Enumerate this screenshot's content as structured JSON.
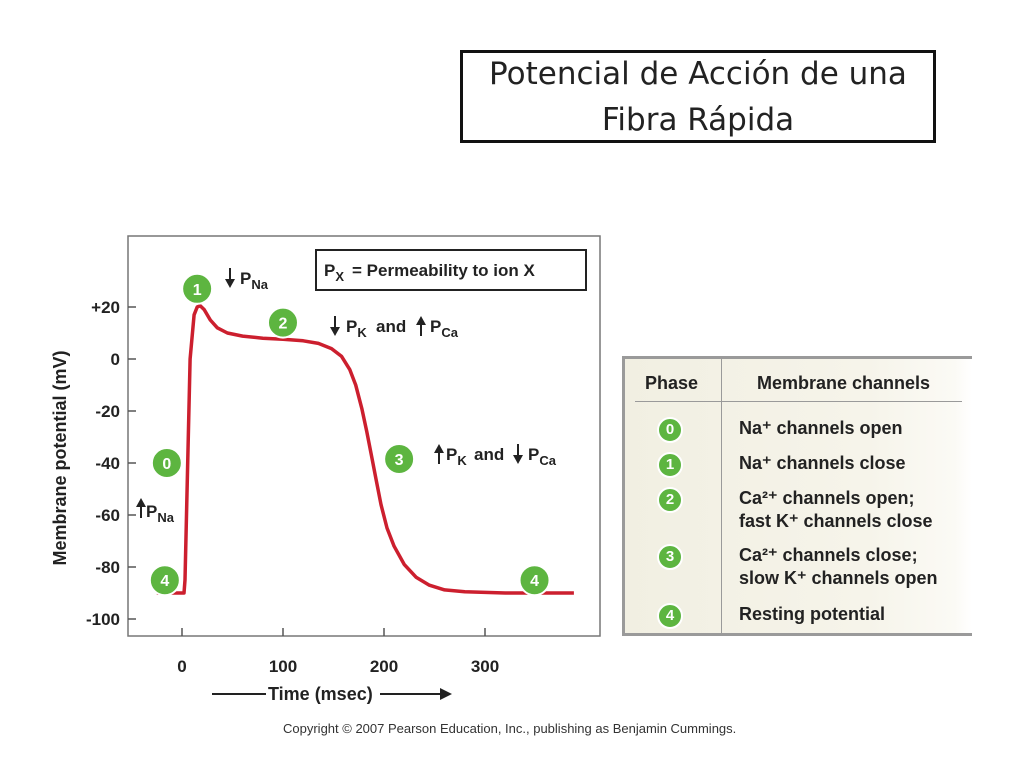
{
  "slide": {
    "title_line1": "Potencial de Acción de una",
    "title_line2": "Fibra Rápida",
    "copyright": "Copyright © 2007 Pearson Education, Inc., publishing as Benjamin Cummings."
  },
  "chart_data": {
    "type": "line",
    "xlabel": "Time (msec)",
    "ylabel": "Membrane potential (mV)",
    "xlim": [
      -30,
      410
    ],
    "ylim": [
      -105,
      45
    ],
    "x_ticks": [
      0,
      100,
      200,
      300
    ],
    "y_ticks": [
      20,
      0,
      -20,
      -40,
      -60,
      -80,
      -100
    ],
    "y_tick_labels": [
      "+20",
      "0",
      "-20",
      "-40",
      "-60",
      "-80",
      "-100"
    ],
    "line_color": "#cc1f2e",
    "series": [
      {
        "points": [
          [
            -25,
            -90
          ],
          [
            2,
            -90
          ],
          [
            3,
            -85
          ],
          [
            8,
            0
          ],
          [
            12,
            17
          ],
          [
            15,
            20
          ],
          [
            18,
            20.5
          ],
          [
            22,
            19
          ],
          [
            28,
            15
          ],
          [
            35,
            12
          ],
          [
            45,
            10
          ],
          [
            60,
            8.8
          ],
          [
            80,
            8
          ],
          [
            100,
            7.6
          ],
          [
            120,
            7
          ],
          [
            135,
            6
          ],
          [
            148,
            4
          ],
          [
            158,
            1
          ],
          [
            166,
            -4
          ],
          [
            172,
            -10
          ],
          [
            178,
            -19
          ],
          [
            183,
            -28
          ],
          [
            188,
            -38
          ],
          [
            192,
            -46
          ],
          [
            197,
            -56
          ],
          [
            203,
            -65
          ],
          [
            210,
            -72
          ],
          [
            220,
            -79
          ],
          [
            232,
            -84
          ],
          [
            245,
            -87
          ],
          [
            260,
            -88.8
          ],
          [
            280,
            -89.5
          ],
          [
            320,
            -90
          ],
          [
            360,
            -90
          ],
          [
            388,
            -90
          ]
        ]
      }
    ],
    "legend_box": {
      "p": "P",
      "x_sub": "X",
      "text": "=  Permeability to ion X"
    },
    "annotations": [
      {
        "phase": "0",
        "x": -15,
        "y": -40,
        "label_p": "P",
        "label_sub": "Na",
        "arrow": "up",
        "label_x": -40,
        "label_y": -58
      },
      {
        "phase": "1",
        "x": 15,
        "y": 27,
        "label_p": "P",
        "label_sub": "Na",
        "arrow": "down"
      },
      {
        "phase": "2",
        "x": 98,
        "y": 14,
        "text1_p": "P",
        "text1_sub": "K",
        "arrow1": "down",
        "and": "and",
        "text2_p": "P",
        "text2_sub": "Ca",
        "arrow2": "up"
      },
      {
        "phase": "3",
        "x": 213,
        "y": -40,
        "text1_p": "P",
        "text1_sub": "K",
        "arrow1": "up",
        "and": "and",
        "text2_p": "P",
        "text2_sub": "Ca",
        "arrow2": "down"
      },
      {
        "phase": "4a",
        "label": "4",
        "x": -17,
        "y": -82
      },
      {
        "phase": "4b",
        "label": "4",
        "x": 353,
        "y": -82
      }
    ]
  },
  "table": {
    "header_phase": "Phase",
    "header_channels": "Membrane channels",
    "rows": [
      {
        "phase": "0",
        "line1": "Na⁺ channels open",
        "line2": ""
      },
      {
        "phase": "1",
        "line1": "Na⁺ channels close",
        "line2": ""
      },
      {
        "phase": "2",
        "line1": "Ca²⁺ channels open;",
        "line2": "fast K⁺ channels close"
      },
      {
        "phase": "3",
        "line1": "Ca²⁺ channels close;",
        "line2": "slow K⁺ channels open"
      },
      {
        "phase": "4",
        "line1": "Resting potential",
        "line2": ""
      }
    ]
  }
}
